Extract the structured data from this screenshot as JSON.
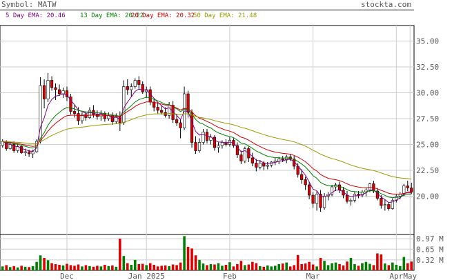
{
  "header": {
    "symbol_text": "Symbol: MATW",
    "site": "stockta.com"
  },
  "ema_labels": [
    {
      "text": "5 Day EMA: 20.46",
      "color": "#800080"
    },
    {
      "text": "13 Day EMA: 20.22",
      "color": "#008000"
    },
    {
      "text": "20 Day EMA: 20.32",
      "color": "#cc0000"
    },
    {
      "text": "50 Day EMA: 21.48",
      "color": "#999900"
    }
  ],
  "colors": {
    "up": "#ffffff",
    "down": "#dd0000",
    "vol_up": "#008000",
    "vol_down": "#dd0000",
    "grid": "#cccccc"
  },
  "chart_data": {
    "type": "candlestick",
    "price_axis": {
      "ticks": [
        "35.00",
        "32.50",
        "30.00",
        "27.50",
        "25.00",
        "22.50",
        "20.00"
      ],
      "range": [
        16.3,
        36.5
      ]
    },
    "volume_axis": {
      "ticks": [
        "0.97 M",
        "0.65 M",
        "0.32 M"
      ],
      "range": [
        0,
        1.1
      ]
    },
    "x_labels": [
      "Dec",
      "Jan 2025",
      "Feb",
      "Mar",
      "Apr",
      "May"
    ],
    "candles": [
      [
        24.9,
        25.5,
        24.7,
        25.3
      ],
      [
        25.3,
        25.4,
        24.4,
        24.6
      ],
      [
        24.6,
        25.2,
        24.5,
        25.0
      ],
      [
        25.0,
        25.3,
        24.2,
        24.4
      ],
      [
        24.4,
        25.0,
        24.2,
        24.8
      ],
      [
        24.8,
        24.9,
        24.1,
        24.2
      ],
      [
        24.2,
        24.6,
        23.9,
        24.3
      ],
      [
        24.3,
        24.5,
        23.8,
        24.1
      ],
      [
        24.1,
        24.5,
        23.7,
        24.3
      ],
      [
        24.3,
        25.5,
        24.2,
        25.3
      ],
      [
        25.3,
        31.5,
        25.1,
        30.7
      ],
      [
        30.7,
        31.3,
        28.5,
        29.4
      ],
      [
        29.4,
        31.9,
        29.1,
        31.2
      ],
      [
        31.2,
        31.6,
        30.2,
        30.5
      ],
      [
        30.5,
        30.9,
        29.3,
        30.3
      ],
      [
        30.3,
        30.8,
        29.7,
        29.9
      ],
      [
        29.9,
        30.5,
        29.5,
        30.2
      ],
      [
        30.2,
        30.6,
        29.2,
        29.6
      ],
      [
        29.6,
        29.9,
        27.9,
        28.2
      ],
      [
        28.2,
        28.8,
        27.6,
        28.0
      ],
      [
        28.0,
        28.6,
        26.9,
        27.3
      ],
      [
        27.3,
        28.1,
        27.0,
        27.9
      ],
      [
        27.9,
        28.2,
        27.3,
        27.6
      ],
      [
        27.6,
        28.6,
        27.5,
        28.3
      ],
      [
        28.3,
        28.8,
        27.6,
        27.9
      ],
      [
        27.9,
        28.3,
        27.4,
        27.7
      ],
      [
        27.7,
        28.3,
        27.3,
        28.0
      ],
      [
        28.0,
        28.2,
        27.2,
        27.5
      ],
      [
        27.5,
        28.1,
        27.3,
        27.8
      ],
      [
        27.8,
        28.1,
        26.9,
        27.2
      ],
      [
        27.2,
        28.0,
        27.0,
        27.7
      ],
      [
        27.7,
        28.2,
        26.3,
        27.1
      ],
      [
        27.1,
        31.2,
        26.9,
        30.6
      ],
      [
        30.6,
        31.3,
        29.8,
        30.3
      ],
      [
        30.3,
        30.9,
        29.6,
        30.6
      ],
      [
        30.6,
        31.4,
        30.4,
        31.2
      ],
      [
        31.2,
        31.6,
        30.4,
        30.8
      ],
      [
        30.8,
        31.1,
        29.9,
        30.1
      ],
      [
        30.1,
        30.6,
        29.5,
        30.3
      ],
      [
        30.3,
        30.6,
        28.8,
        29.1
      ],
      [
        29.1,
        29.4,
        28.2,
        28.6
      ],
      [
        28.6,
        29.1,
        28.0,
        28.3
      ],
      [
        28.3,
        28.8,
        27.9,
        28.1
      ],
      [
        28.1,
        28.6,
        27.6,
        27.8
      ],
      [
        27.8,
        29.1,
        27.5,
        28.8
      ],
      [
        28.8,
        29.2,
        27.1,
        27.4
      ],
      [
        27.4,
        27.9,
        26.8,
        27.1
      ],
      [
        27.1,
        27.4,
        25.6,
        26.6
      ],
      [
        26.6,
        30.6,
        26.4,
        29.9
      ],
      [
        29.9,
        30.2,
        27.6,
        28.1
      ],
      [
        28.1,
        28.4,
        24.7,
        25.2
      ],
      [
        25.2,
        25.8,
        24.1,
        24.4
      ],
      [
        24.4,
        25.6,
        24.2,
        25.2
      ],
      [
        25.2,
        26.5,
        25.0,
        26.2
      ],
      [
        26.2,
        26.5,
        25.1,
        25.4
      ],
      [
        25.4,
        26.0,
        25.0,
        25.7
      ],
      [
        25.7,
        25.9,
        24.4,
        24.7
      ],
      [
        24.7,
        25.2,
        24.2,
        24.9
      ],
      [
        24.9,
        25.4,
        24.6,
        25.2
      ],
      [
        25.2,
        25.5,
        24.8,
        25.0
      ],
      [
        25.0,
        25.7,
        24.8,
        25.4
      ],
      [
        25.4,
        25.6,
        24.7,
        24.9
      ],
      [
        24.9,
        25.2,
        23.7,
        24.0
      ],
      [
        24.0,
        24.4,
        23.1,
        23.4
      ],
      [
        23.4,
        24.8,
        23.2,
        24.6
      ],
      [
        24.6,
        24.8,
        23.3,
        23.7
      ],
      [
        23.7,
        24.2,
        22.9,
        23.2
      ],
      [
        23.2,
        23.6,
        22.4,
        22.8
      ],
      [
        22.8,
        23.5,
        22.6,
        23.2
      ],
      [
        23.2,
        23.4,
        22.5,
        22.9
      ],
      [
        22.9,
        23.3,
        22.6,
        23.0
      ],
      [
        23.0,
        23.4,
        22.8,
        23.3
      ],
      [
        23.3,
        23.7,
        23.0,
        23.4
      ],
      [
        23.4,
        23.8,
        23.1,
        23.6
      ],
      [
        23.6,
        23.9,
        23.3,
        23.5
      ],
      [
        23.5,
        24.0,
        23.2,
        23.8
      ],
      [
        23.8,
        24.1,
        23.4,
        23.6
      ],
      [
        23.6,
        23.9,
        22.6,
        22.9
      ],
      [
        22.9,
        23.2,
        21.8,
        22.1
      ],
      [
        22.1,
        22.6,
        21.2,
        21.6
      ],
      [
        21.6,
        21.9,
        20.6,
        21.1
      ],
      [
        21.1,
        21.4,
        19.7,
        20.1
      ],
      [
        20.1,
        20.4,
        18.9,
        19.3
      ],
      [
        19.3,
        20.5,
        18.6,
        20.2
      ],
      [
        20.2,
        20.6,
        18.5,
        18.9
      ],
      [
        18.9,
        20.3,
        18.7,
        20.0
      ],
      [
        20.0,
        20.4,
        19.6,
        20.2
      ],
      [
        20.2,
        21.1,
        20.0,
        20.9
      ],
      [
        20.9,
        21.3,
        20.5,
        21.1
      ],
      [
        21.1,
        21.4,
        20.3,
        20.6
      ],
      [
        20.6,
        20.9,
        19.8,
        20.1
      ],
      [
        20.1,
        20.5,
        19.3,
        19.5
      ],
      [
        19.5,
        19.8,
        19.1,
        19.6
      ],
      [
        19.6,
        20.4,
        19.4,
        20.2
      ],
      [
        20.2,
        20.5,
        19.8,
        20.1
      ],
      [
        20.1,
        20.6,
        19.9,
        20.4
      ],
      [
        20.4,
        20.8,
        20.0,
        20.6
      ],
      [
        20.6,
        21.3,
        20.4,
        21.2
      ],
      [
        21.2,
        21.5,
        20.3,
        20.5
      ],
      [
        20.5,
        20.8,
        19.6,
        19.8
      ],
      [
        19.8,
        20.1,
        18.8,
        19.1
      ],
      [
        19.1,
        19.7,
        18.6,
        19.2
      ],
      [
        19.2,
        19.4,
        18.6,
        18.8
      ],
      [
        18.8,
        19.8,
        18.7,
        19.6
      ],
      [
        19.6,
        20.2,
        19.4,
        20.0
      ],
      [
        20.0,
        20.4,
        19.7,
        20.2
      ],
      [
        20.2,
        21.2,
        20.0,
        21.0
      ],
      [
        21.0,
        21.5,
        20.5,
        20.8
      ],
      [
        20.8,
        21.3,
        20.2,
        20.4
      ]
    ],
    "volume": [
      0.12,
      0.16,
      0.1,
      0.13,
      0.09,
      0.14,
      0.11,
      0.1,
      0.13,
      0.26,
      0.46,
      0.38,
      0.31,
      0.22,
      0.19,
      0.17,
      0.15,
      0.2,
      0.16,
      0.14,
      0.18,
      0.12,
      0.16,
      0.13,
      0.11,
      0.14,
      0.12,
      0.17,
      0.13,
      0.15,
      0.11,
      0.97,
      0.44,
      0.22,
      0.17,
      0.32,
      0.19,
      0.2,
      0.16,
      0.22,
      0.17,
      0.12,
      0.14,
      0.15,
      0.13,
      0.18,
      0.16,
      0.24,
      1.05,
      0.72,
      0.67,
      0.46,
      0.32,
      0.21,
      0.16,
      0.19,
      0.18,
      0.22,
      0.14,
      0.17,
      0.25,
      0.12,
      0.19,
      0.29,
      0.16,
      0.18,
      0.26,
      0.22,
      0.13,
      0.11,
      0.15,
      0.12,
      0.14,
      0.19,
      0.21,
      0.24,
      0.12,
      0.16,
      0.47,
      0.19,
      0.21,
      0.26,
      0.18,
      0.12,
      0.38,
      0.29,
      0.16,
      0.22,
      0.24,
      0.19,
      0.15,
      0.27,
      0.38,
      0.19,
      0.14,
      0.22,
      0.26,
      0.2,
      0.16,
      0.52,
      0.49,
      0.21,
      0.16,
      0.24,
      0.17,
      0.13,
      0.41,
      0.22,
      0.27
    ]
  }
}
